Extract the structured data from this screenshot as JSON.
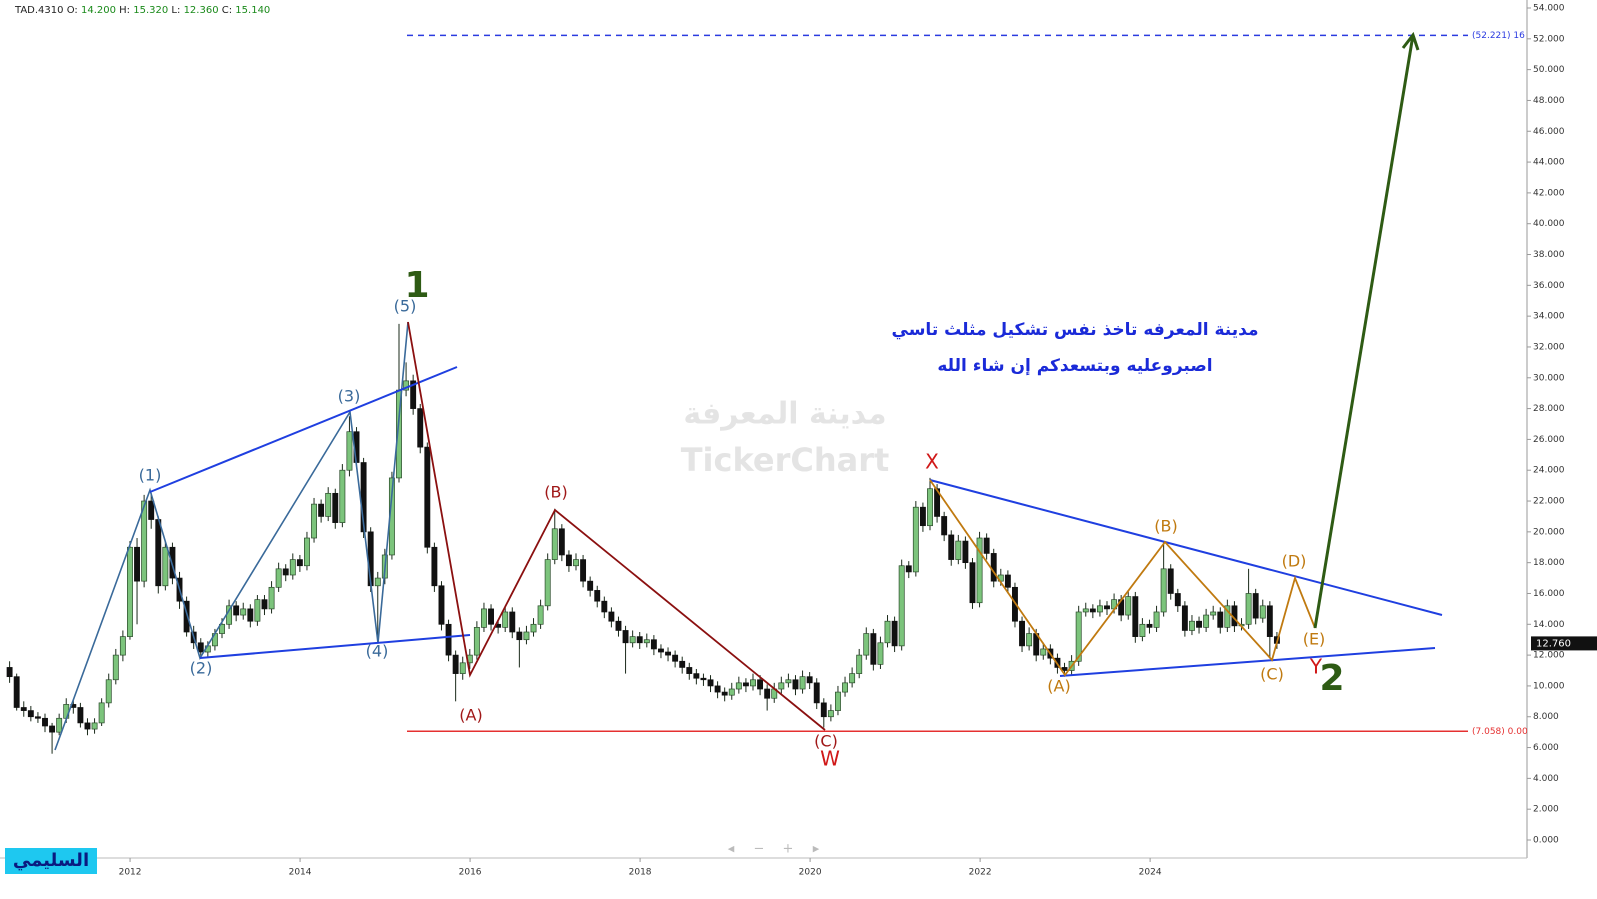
{
  "chart_data": {
    "type": "candlestick",
    "symbol": "TAD.4310",
    "ohlc_header": [
      {
        "key": "O:",
        "text": "14.200"
      },
      {
        "key": "H:",
        "text": "15.320"
      },
      {
        "key": "L:",
        "text": "12.360"
      },
      {
        "key": "C:",
        "text": "15.140"
      }
    ],
    "up_color": "#7cc47c",
    "down_color": "#111111",
    "ylim": [
      0,
      54
    ],
    "yticks": [
      {
        "value": 0,
        "label": "0.000"
      },
      {
        "value": 2,
        "label": "2.000"
      },
      {
        "value": 4,
        "label": "4.000"
      },
      {
        "value": 6,
        "label": "6.000"
      },
      {
        "value": 8,
        "label": "8.000"
      },
      {
        "value": 10,
        "label": "10.000"
      },
      {
        "value": 12,
        "label": "12.000"
      },
      {
        "value": 14,
        "label": "14.000"
      },
      {
        "value": 16,
        "label": "16.000"
      },
      {
        "value": 18,
        "label": "18.000"
      },
      {
        "value": 20,
        "label": "20.000"
      },
      {
        "value": 22,
        "label": "22.000"
      },
      {
        "value": 24,
        "label": "24.000"
      },
      {
        "value": 26,
        "label": "26.000"
      },
      {
        "value": 28,
        "label": "28.000"
      },
      {
        "value": 30,
        "label": "30.000"
      },
      {
        "value": 32,
        "label": "32.000"
      },
      {
        "value": 34,
        "label": "34.000"
      },
      {
        "value": 36,
        "label": "36.000"
      },
      {
        "value": 38,
        "label": "38.000"
      },
      {
        "value": 40,
        "label": "40.000"
      },
      {
        "value": 42,
        "label": "42.000"
      },
      {
        "value": 44,
        "label": "44.000"
      },
      {
        "value": 46,
        "label": "46.000"
      },
      {
        "value": 48,
        "label": "48.000"
      },
      {
        "value": 50,
        "label": "50.000"
      },
      {
        "value": 52,
        "label": "52.000"
      },
      {
        "value": 54,
        "label": "54.000"
      }
    ],
    "xlim": [
      2010.47,
      2028.41
    ],
    "xticks": [
      2012,
      2014,
      2016,
      2018,
      2020,
      2022,
      2024
    ],
    "last_price": {
      "value": 12.76,
      "label": "12.760"
    },
    "levels": [
      {
        "value": 52.221,
        "label": "(52.221) 16",
        "color": "#2b3be0",
        "dashed": true
      },
      {
        "value": 7.058,
        "label": "(7.058) 0.00",
        "color": "#e53030",
        "dashed": false
      }
    ],
    "candles": [
      [
        11.2,
        11.6,
        10.2,
        10.6
      ],
      [
        10.6,
        10.8,
        8.4,
        8.6
      ],
      [
        8.6,
        9.0,
        8.0,
        8.4
      ],
      [
        8.4,
        8.7,
        7.7,
        8.0
      ],
      [
        8.0,
        8.3,
        7.6,
        7.9
      ],
      [
        7.9,
        8.2,
        7.0,
        7.4
      ],
      [
        7.4,
        7.6,
        5.6,
        7.0
      ],
      [
        7.0,
        8.2,
        6.8,
        7.9
      ],
      [
        7.9,
        9.2,
        7.6,
        8.8
      ],
      [
        8.8,
        9.1,
        8.2,
        8.6
      ],
      [
        8.6,
        8.9,
        7.3,
        7.6
      ],
      [
        7.6,
        7.9,
        6.8,
        7.2
      ],
      [
        7.2,
        7.9,
        6.9,
        7.6
      ],
      [
        7.6,
        9.2,
        7.4,
        8.9
      ],
      [
        8.9,
        10.8,
        8.6,
        10.4
      ],
      [
        10.4,
        12.4,
        10.1,
        12.0
      ],
      [
        12.0,
        13.6,
        11.6,
        13.2
      ],
      [
        13.2,
        19.4,
        13.0,
        19.0
      ],
      [
        19.0,
        19.6,
        14.0,
        16.8
      ],
      [
        16.8,
        22.4,
        16.4,
        22.0
      ],
      [
        22.0,
        22.5,
        20.2,
        20.8
      ],
      [
        20.8,
        21.0,
        16.0,
        16.5
      ],
      [
        16.5,
        19.4,
        16.2,
        19.0
      ],
      [
        19.0,
        19.3,
        16.6,
        17.0
      ],
      [
        17.0,
        17.4,
        15.0,
        15.5
      ],
      [
        15.5,
        15.8,
        13.2,
        13.5
      ],
      [
        13.5,
        13.9,
        12.4,
        12.8
      ],
      [
        12.8,
        13.1,
        11.8,
        12.2
      ],
      [
        12.2,
        12.9,
        11.9,
        12.6
      ],
      [
        12.6,
        13.7,
        12.3,
        13.4
      ],
      [
        13.4,
        14.4,
        13.1,
        14.0
      ],
      [
        14.0,
        15.6,
        13.7,
        15.2
      ],
      [
        15.2,
        15.5,
        14.2,
        14.6
      ],
      [
        14.6,
        15.4,
        14.3,
        15.0
      ],
      [
        15.0,
        15.3,
        13.8,
        14.2
      ],
      [
        14.2,
        15.9,
        13.9,
        15.6
      ],
      [
        15.6,
        15.9,
        14.6,
        15.0
      ],
      [
        15.0,
        16.8,
        14.7,
        16.4
      ],
      [
        16.4,
        18.0,
        16.1,
        17.6
      ],
      [
        17.6,
        17.9,
        16.8,
        17.2
      ],
      [
        17.2,
        18.6,
        16.9,
        18.2
      ],
      [
        18.2,
        18.5,
        17.4,
        17.8
      ],
      [
        17.8,
        20.0,
        17.5,
        19.6
      ],
      [
        19.6,
        22.2,
        19.3,
        21.8
      ],
      [
        21.8,
        22.1,
        20.6,
        21.0
      ],
      [
        21.0,
        22.9,
        20.7,
        22.5
      ],
      [
        22.5,
        22.8,
        20.2,
        20.6
      ],
      [
        20.6,
        24.4,
        20.3,
        24.0
      ],
      [
        24.0,
        27.5,
        23.6,
        26.5
      ],
      [
        26.5,
        26.8,
        24.1,
        24.5
      ],
      [
        24.5,
        24.8,
        19.6,
        20.0
      ],
      [
        20.0,
        20.3,
        16.1,
        16.5
      ],
      [
        16.5,
        17.4,
        13.0,
        17.0
      ],
      [
        17.0,
        18.9,
        16.6,
        18.5
      ],
      [
        18.5,
        23.9,
        18.2,
        23.5
      ],
      [
        23.5,
        33.5,
        23.2,
        29.2
      ],
      [
        29.2,
        31.0,
        28.8,
        29.8
      ],
      [
        29.8,
        30.2,
        27.6,
        28.0
      ],
      [
        28.0,
        28.3,
        25.1,
        25.5
      ],
      [
        25.5,
        25.8,
        18.6,
        19.0
      ],
      [
        19.0,
        19.3,
        16.1,
        16.5
      ],
      [
        16.5,
        16.8,
        13.6,
        14.0
      ],
      [
        14.0,
        14.3,
        11.6,
        12.0
      ],
      [
        12.0,
        12.3,
        9.0,
        10.8
      ],
      [
        10.8,
        11.9,
        10.4,
        11.5
      ],
      [
        11.5,
        12.4,
        11.1,
        12.0
      ],
      [
        12.0,
        14.2,
        11.7,
        13.8
      ],
      [
        13.8,
        15.4,
        13.5,
        15.0
      ],
      [
        15.0,
        15.3,
        13.6,
        14.0
      ],
      [
        14.0,
        14.3,
        13.4,
        13.8
      ],
      [
        13.8,
        15.2,
        13.5,
        14.8
      ],
      [
        14.8,
        15.1,
        13.1,
        13.5
      ],
      [
        13.5,
        13.8,
        11.2,
        13.0
      ],
      [
        13.0,
        13.9,
        12.7,
        13.5
      ],
      [
        13.5,
        14.4,
        13.2,
        14.0
      ],
      [
        14.0,
        15.6,
        13.7,
        15.2
      ],
      [
        15.2,
        18.6,
        14.9,
        18.2
      ],
      [
        18.2,
        21.5,
        17.9,
        20.2
      ],
      [
        20.2,
        20.5,
        18.1,
        18.5
      ],
      [
        18.5,
        18.8,
        17.4,
        17.8
      ],
      [
        17.8,
        18.6,
        17.5,
        18.2
      ],
      [
        18.2,
        18.5,
        16.4,
        16.8
      ],
      [
        16.8,
        17.1,
        15.8,
        16.2
      ],
      [
        16.2,
        16.5,
        15.1,
        15.5
      ],
      [
        15.5,
        15.8,
        14.4,
        14.8
      ],
      [
        14.8,
        15.1,
        13.8,
        14.2
      ],
      [
        14.2,
        14.5,
        13.2,
        13.6
      ],
      [
        13.6,
        13.9,
        10.8,
        12.8
      ],
      [
        12.8,
        13.6,
        12.5,
        13.2
      ],
      [
        13.2,
        13.5,
        12.4,
        12.8
      ],
      [
        12.8,
        13.4,
        12.5,
        13.0
      ],
      [
        13.0,
        13.3,
        12.0,
        12.4
      ],
      [
        12.4,
        12.7,
        11.8,
        12.2
      ],
      [
        12.2,
        12.5,
        11.6,
        12.0
      ],
      [
        12.0,
        12.3,
        11.2,
        11.6
      ],
      [
        11.6,
        11.9,
        10.8,
        11.2
      ],
      [
        11.2,
        11.5,
        10.4,
        10.8
      ],
      [
        10.8,
        11.1,
        10.1,
        10.5
      ],
      [
        10.5,
        10.8,
        10.0,
        10.4
      ],
      [
        10.4,
        10.7,
        9.6,
        10.0
      ],
      [
        10.0,
        10.3,
        9.2,
        9.6
      ],
      [
        9.6,
        9.9,
        9.0,
        9.4
      ],
      [
        9.4,
        10.2,
        9.1,
        9.8
      ],
      [
        9.8,
        10.6,
        9.5,
        10.2
      ],
      [
        10.2,
        10.5,
        9.6,
        10.0
      ],
      [
        10.0,
        10.8,
        9.7,
        10.4
      ],
      [
        10.4,
        10.7,
        9.4,
        9.8
      ],
      [
        9.8,
        10.1,
        8.4,
        9.2
      ],
      [
        9.2,
        10.2,
        8.9,
        9.8
      ],
      [
        9.8,
        10.6,
        9.5,
        10.2
      ],
      [
        10.2,
        10.8,
        9.9,
        10.4
      ],
      [
        10.4,
        10.7,
        9.4,
        9.8
      ],
      [
        9.8,
        11.0,
        9.5,
        10.6
      ],
      [
        10.6,
        10.9,
        9.8,
        10.2
      ],
      [
        10.2,
        10.5,
        8.5,
        8.9
      ],
      [
        8.9,
        9.2,
        7.3,
        8.0
      ],
      [
        8.0,
        8.8,
        7.7,
        8.4
      ],
      [
        8.4,
        10.0,
        8.1,
        9.6
      ],
      [
        9.6,
        10.6,
        9.3,
        10.2
      ],
      [
        10.2,
        11.2,
        9.9,
        10.8
      ],
      [
        10.8,
        12.4,
        10.5,
        12.0
      ],
      [
        12.0,
        13.8,
        11.7,
        13.4
      ],
      [
        13.4,
        13.7,
        11.0,
        11.4
      ],
      [
        11.4,
        13.2,
        11.1,
        12.8
      ],
      [
        12.8,
        14.6,
        12.5,
        14.2
      ],
      [
        14.2,
        14.5,
        12.2,
        12.6
      ],
      [
        12.6,
        18.2,
        12.3,
        17.8
      ],
      [
        17.8,
        18.1,
        17.0,
        17.4
      ],
      [
        17.4,
        22.0,
        17.1,
        21.6
      ],
      [
        21.6,
        21.9,
        20.0,
        20.4
      ],
      [
        20.4,
        23.5,
        20.1,
        22.8
      ],
      [
        22.8,
        23.1,
        20.6,
        21.0
      ],
      [
        21.0,
        21.3,
        19.4,
        19.8
      ],
      [
        19.8,
        20.1,
        17.8,
        18.2
      ],
      [
        18.2,
        19.8,
        17.9,
        19.4
      ],
      [
        19.4,
        19.7,
        17.6,
        18.0
      ],
      [
        18.0,
        18.3,
        15.0,
        15.4
      ],
      [
        15.4,
        20.0,
        15.1,
        19.6
      ],
      [
        19.6,
        19.9,
        18.2,
        18.6
      ],
      [
        18.6,
        18.9,
        16.4,
        16.8
      ],
      [
        16.8,
        17.6,
        16.5,
        17.2
      ],
      [
        17.2,
        17.5,
        16.0,
        16.4
      ],
      [
        16.4,
        16.7,
        13.8,
        14.2
      ],
      [
        14.2,
        14.5,
        12.2,
        12.6
      ],
      [
        12.6,
        13.8,
        12.3,
        13.4
      ],
      [
        13.4,
        13.7,
        11.6,
        12.0
      ],
      [
        12.0,
        12.8,
        11.7,
        12.4
      ],
      [
        12.4,
        12.7,
        11.4,
        11.8
      ],
      [
        11.8,
        12.1,
        10.8,
        11.2
      ],
      [
        11.2,
        11.5,
        10.6,
        11.0
      ],
      [
        11.0,
        12.0,
        10.7,
        11.6
      ],
      [
        11.6,
        15.2,
        11.3,
        14.8
      ],
      [
        14.8,
        15.4,
        14.5,
        15.0
      ],
      [
        15.0,
        15.3,
        14.4,
        14.8
      ],
      [
        14.8,
        15.6,
        14.5,
        15.2
      ],
      [
        15.2,
        15.5,
        14.6,
        15.0
      ],
      [
        15.0,
        16.0,
        14.7,
        15.6
      ],
      [
        15.6,
        15.9,
        14.2,
        14.6
      ],
      [
        14.6,
        16.2,
        14.3,
        15.8
      ],
      [
        15.8,
        16.1,
        12.8,
        13.2
      ],
      [
        13.2,
        14.4,
        12.9,
        14.0
      ],
      [
        14.0,
        14.3,
        13.4,
        13.8
      ],
      [
        13.8,
        15.2,
        13.5,
        14.8
      ],
      [
        14.8,
        19.3,
        14.5,
        17.6
      ],
      [
        17.6,
        17.9,
        15.6,
        16.0
      ],
      [
        16.0,
        16.3,
        14.8,
        15.2
      ],
      [
        15.2,
        15.5,
        13.2,
        13.6
      ],
      [
        13.6,
        14.6,
        13.3,
        14.2
      ],
      [
        14.2,
        14.5,
        13.4,
        13.8
      ],
      [
        13.8,
        15.0,
        13.5,
        14.6
      ],
      [
        14.6,
        15.2,
        14.3,
        14.8
      ],
      [
        14.8,
        15.1,
        13.4,
        13.8
      ],
      [
        13.8,
        15.6,
        13.5,
        15.2
      ],
      [
        15.2,
        15.5,
        13.5,
        13.9
      ],
      [
        13.9,
        14.4,
        13.6,
        14.0
      ],
      [
        14.0,
        17.6,
        13.7,
        16.0
      ],
      [
        16.0,
        16.3,
        14.0,
        14.4
      ],
      [
        14.4,
        15.6,
        14.1,
        15.2
      ],
      [
        15.2,
        15.5,
        11.8,
        13.2
      ],
      [
        13.2,
        13.5,
        12.4,
        12.76
      ]
    ],
    "annotations": [
      "(1)",
      "(2)",
      "(3)",
      "(4)",
      "(5)",
      "1",
      "(A)",
      "(B)",
      "(C)",
      "W",
      "X",
      "(A)",
      "(B)",
      "(C)",
      "(D)",
      "(E)",
      "Y",
      "2"
    ],
    "comment": [
      "مدينة المعرفه تاخذ نفس تشكيل مثلث تاسي",
      "اصبروعليه  وبتسعدكم إن شاء الله"
    ],
    "watermark": [
      "مدينة المعرفة",
      "TickerChart"
    ],
    "author": "السليمي"
  }
}
